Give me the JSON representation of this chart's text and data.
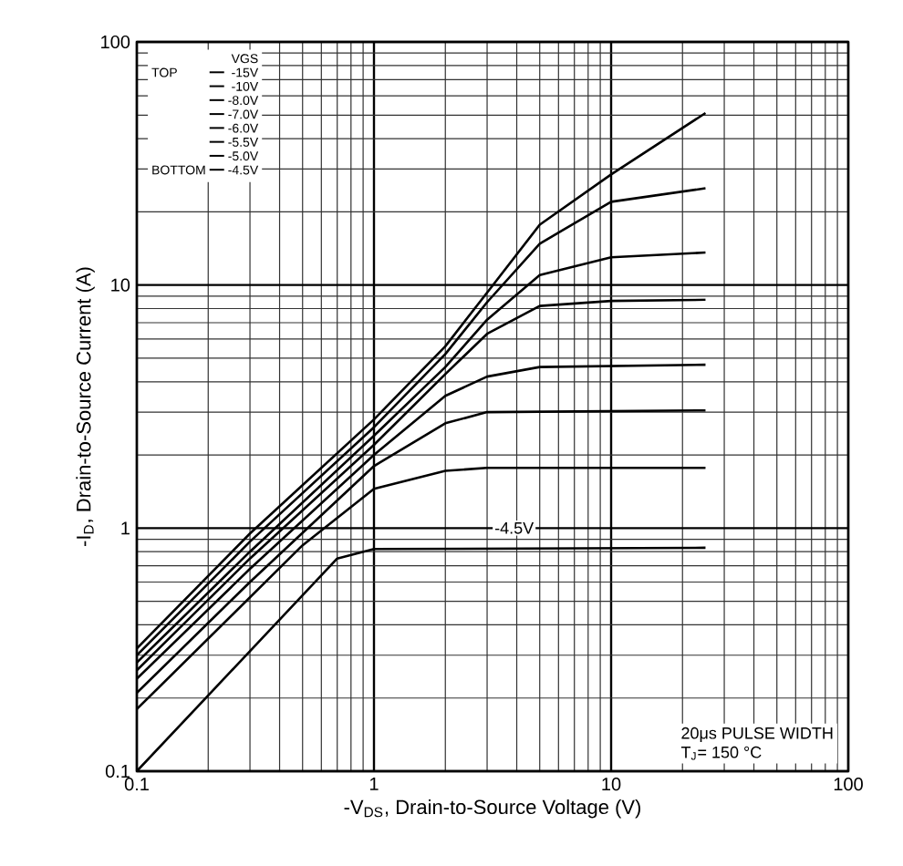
{
  "chart_data": {
    "type": "line",
    "xlabel": "-V$_{DS}$, Drain-to-Source Voltage (V)",
    "ylabel": "-I$_{D}$, Drain-to-Source Current (A)",
    "log": "xy",
    "xlim": [
      0.1,
      100
    ],
    "ylim": [
      0.1,
      100
    ],
    "xticks": [
      0.1,
      1,
      10,
      100
    ],
    "yticks": [
      0.1,
      1,
      10,
      100
    ],
    "grid": true,
    "legend": "top left",
    "legend_title": "VGS",
    "marker": "none",
    "line_style": "solid",
    "series": [
      {
        "name": "-15V",
        "color": "#000000",
        "x": [
          0.1,
          0.3,
          1,
          2,
          3.1,
          5,
          10,
          25
        ],
        "values": [
          0.32,
          0.95,
          2.8,
          5.6,
          9.7,
          17.7,
          28.5,
          51
        ]
      },
      {
        "name": "-10V",
        "color": "#000000",
        "x": [
          0.1,
          0.3,
          1,
          2,
          3,
          5,
          10,
          25
        ],
        "values": [
          0.3,
          0.88,
          2.6,
          5.2,
          8.5,
          14.8,
          22,
          25
        ]
      },
      {
        "name": "-8.0V",
        "color": "#000000",
        "x": [
          0.1,
          0.3,
          1,
          2,
          3,
          5,
          10,
          25
        ],
        "values": [
          0.28,
          0.8,
          2.4,
          4.6,
          7.2,
          11,
          13,
          13.6
        ]
      },
      {
        "name": "-7.0V",
        "color": "#000000",
        "x": [
          0.1,
          0.3,
          1,
          2,
          3,
          5,
          10,
          25
        ],
        "values": [
          0.26,
          0.75,
          2.2,
          4.3,
          6.3,
          8.2,
          8.6,
          8.7
        ]
      },
      {
        "name": "-6.0V",
        "color": "#000000",
        "x": [
          0.1,
          0.3,
          1,
          2,
          3,
          5,
          25
        ],
        "values": [
          0.24,
          0.68,
          2.0,
          3.5,
          4.2,
          4.6,
          4.7
        ]
      },
      {
        "name": "-5.5V",
        "color": "#000000",
        "x": [
          0.1,
          0.3,
          1,
          2,
          3,
          25
        ],
        "values": [
          0.21,
          0.6,
          1.8,
          2.7,
          3.0,
          3.05
        ]
      },
      {
        "name": "-5.0V",
        "color": "#000000",
        "x": [
          0.1,
          0.5,
          1,
          2,
          3,
          25
        ],
        "values": [
          0.18,
          0.85,
          1.45,
          1.72,
          1.77,
          1.77
        ]
      },
      {
        "name": "-4.5V",
        "color": "#000000",
        "x": [
          0.1,
          0.7,
          1,
          25
        ],
        "values": [
          0.1,
          0.75,
          0.82,
          0.83
        ]
      }
    ],
    "annotations": [
      {
        "text": "-4.5V",
        "x": 3.9,
        "y": 1
      },
      "20μs PULSE WIDTH",
      "T$_{J}$= 150 °C",
      "TOP",
      "BOTTOM"
    ]
  }
}
